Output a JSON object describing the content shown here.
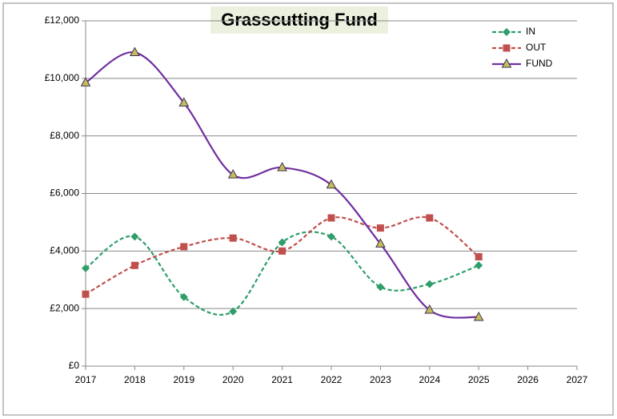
{
  "chart_data": {
    "type": "line",
    "title": "Grasscutting Fund",
    "x": [
      2017,
      2018,
      2019,
      2020,
      2021,
      2022,
      2023,
      2024,
      2025
    ],
    "series": [
      {
        "name": "IN",
        "color": "#2e9e6a",
        "marker": "diamond",
        "dash": true,
        "values": [
          3400,
          4500,
          2400,
          1900,
          4300,
          4500,
          2750,
          2850,
          3500
        ]
      },
      {
        "name": "OUT",
        "color": "#c0504d",
        "marker": "square",
        "dash": true,
        "values": [
          2500,
          3500,
          4150,
          4450,
          4000,
          5150,
          4800,
          5150,
          3800
        ]
      },
      {
        "name": "FUND",
        "color": "#7030a0",
        "marker": "triangle",
        "dash": false,
        "values": [
          9850,
          10900,
          9150,
          6650,
          6900,
          6300,
          4250,
          1950,
          1700
        ]
      }
    ],
    "xlim": [
      2017,
      2027
    ],
    "xticks": [
      2017,
      2018,
      2019,
      2020,
      2021,
      2022,
      2023,
      2024,
      2025,
      2026,
      2027
    ],
    "ylim": [
      0,
      12000
    ],
    "yticks": [
      {
        "value": 0,
        "label": "£0"
      },
      {
        "value": 2000,
        "label": "£2,000"
      },
      {
        "value": 4000,
        "label": "£4,000"
      },
      {
        "value": 6000,
        "label": "£6,000"
      },
      {
        "value": 8000,
        "label": "£8,000"
      },
      {
        "value": 10000,
        "label": "£10,000"
      },
      {
        "value": 12000,
        "label": "£12,000"
      }
    ],
    "grid": true,
    "smooth": true,
    "legend": "top-right"
  }
}
